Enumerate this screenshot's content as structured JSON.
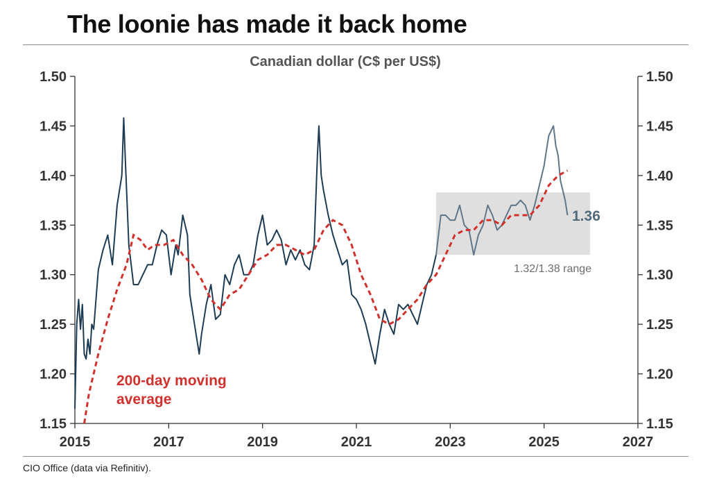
{
  "header": {
    "title": "The loonie has made it back home"
  },
  "footer": {
    "source": "CIO Office (data via Refinitiv)."
  },
  "chart_data": {
    "type": "line",
    "title": "Canadian dollar (C$ per US$)",
    "xlabel": "",
    "ylabel": "",
    "xlim": [
      2015,
      2027
    ],
    "ylim": [
      1.15,
      1.5
    ],
    "x_ticks": [
      "2015",
      "2017",
      "2019",
      "2021",
      "2023",
      "2025",
      "2027"
    ],
    "y_ticks": [
      "1.50",
      "1.45",
      "1.40",
      "1.35",
      "1.30",
      "1.25",
      "1.20",
      "1.15"
    ],
    "annotations": {
      "moving_average_line1": "200-day moving",
      "moving_average_line2": "average",
      "last_value": "1.36",
      "range": "1.32/1.38 range"
    },
    "range_band": {
      "from_x": 2022.7,
      "to_x": 2025.98,
      "low": 1.32,
      "high": 1.383
    },
    "series": [
      {
        "name": "Canadian dollar (C$ per US$)",
        "color": "#1d3b52",
        "highlight_color": "#5f7686",
        "x": [
          2015.0,
          2015.04,
          2015.08,
          2015.12,
          2015.16,
          2015.2,
          2015.24,
          2015.28,
          2015.32,
          2015.36,
          2015.4,
          2015.5,
          2015.6,
          2015.7,
          2015.8,
          2015.9,
          2016.0,
          2016.04,
          2016.08,
          2016.15,
          2016.25,
          2016.35,
          2016.45,
          2016.55,
          2016.65,
          2016.75,
          2016.85,
          2016.95,
          2017.05,
          2017.15,
          2017.2,
          2017.3,
          2017.4,
          2017.45,
          2017.55,
          2017.65,
          2017.7,
          2017.8,
          2017.9,
          2018.0,
          2018.1,
          2018.2,
          2018.3,
          2018.4,
          2018.5,
          2018.6,
          2018.7,
          2018.8,
          2018.9,
          2019.0,
          2019.1,
          2019.2,
          2019.3,
          2019.4,
          2019.5,
          2019.6,
          2019.7,
          2019.8,
          2019.9,
          2020.0,
          2020.1,
          2020.17,
          2020.2,
          2020.25,
          2020.3,
          2020.4,
          2020.5,
          2020.6,
          2020.7,
          2020.8,
          2020.9,
          2021.0,
          2021.1,
          2021.2,
          2021.3,
          2021.4,
          2021.5,
          2021.6,
          2021.7,
          2021.8,
          2021.9,
          2022.0,
          2022.1,
          2022.2,
          2022.3,
          2022.4,
          2022.5,
          2022.6,
          2022.7,
          2022.8,
          2022.9,
          2023.0,
          2023.1,
          2023.2,
          2023.3,
          2023.4,
          2023.5,
          2023.6,
          2023.7,
          2023.8,
          2023.9,
          2024.0,
          2024.1,
          2024.2,
          2024.3,
          2024.4,
          2024.5,
          2024.6,
          2024.7,
          2024.8,
          2024.9,
          2025.0,
          2025.05,
          2025.1,
          2025.15,
          2025.2,
          2025.25,
          2025.3,
          2025.35,
          2025.4,
          2025.45,
          2025.5
        ],
        "values": [
          1.165,
          1.25,
          1.275,
          1.245,
          1.27,
          1.22,
          1.215,
          1.235,
          1.22,
          1.25,
          1.245,
          1.305,
          1.325,
          1.34,
          1.31,
          1.37,
          1.4,
          1.458,
          1.41,
          1.33,
          1.29,
          1.29,
          1.3,
          1.31,
          1.31,
          1.33,
          1.345,
          1.34,
          1.3,
          1.33,
          1.32,
          1.36,
          1.34,
          1.28,
          1.25,
          1.22,
          1.24,
          1.27,
          1.29,
          1.255,
          1.26,
          1.3,
          1.29,
          1.31,
          1.32,
          1.3,
          1.3,
          1.31,
          1.34,
          1.36,
          1.33,
          1.335,
          1.345,
          1.335,
          1.31,
          1.325,
          1.315,
          1.325,
          1.31,
          1.305,
          1.33,
          1.42,
          1.45,
          1.4,
          1.385,
          1.36,
          1.34,
          1.325,
          1.31,
          1.315,
          1.28,
          1.275,
          1.265,
          1.25,
          1.23,
          1.21,
          1.24,
          1.265,
          1.25,
          1.24,
          1.27,
          1.265,
          1.27,
          1.26,
          1.25,
          1.27,
          1.29,
          1.3,
          1.32,
          1.36,
          1.36,
          1.355,
          1.355,
          1.37,
          1.35,
          1.345,
          1.32,
          1.34,
          1.35,
          1.37,
          1.36,
          1.345,
          1.35,
          1.36,
          1.37,
          1.37,
          1.375,
          1.37,
          1.355,
          1.37,
          1.39,
          1.41,
          1.425,
          1.44,
          1.445,
          1.45,
          1.43,
          1.42,
          1.395,
          1.385,
          1.375,
          1.36
        ]
      },
      {
        "name": "200-day moving average",
        "color": "#d0312d",
        "dashed": true,
        "x": [
          2015.2,
          2015.3,
          2015.5,
          2015.7,
          2015.9,
          2016.1,
          2016.25,
          2016.4,
          2016.55,
          2016.7,
          2016.9,
          2017.1,
          2017.3,
          2017.5,
          2017.7,
          2017.9,
          2018.1,
          2018.3,
          2018.5,
          2018.7,
          2018.9,
          2019.1,
          2019.3,
          2019.5,
          2019.7,
          2019.9,
          2020.1,
          2020.3,
          2020.5,
          2020.7,
          2020.9,
          2021.1,
          2021.3,
          2021.5,
          2021.7,
          2021.9,
          2022.1,
          2022.3,
          2022.5,
          2022.7,
          2022.9,
          2023.1,
          2023.3,
          2023.5,
          2023.7,
          2023.9,
          2024.1,
          2024.3,
          2024.5,
          2024.7,
          2024.9,
          2025.1,
          2025.3,
          2025.5
        ],
        "values": [
          1.15,
          1.18,
          1.22,
          1.255,
          1.285,
          1.31,
          1.34,
          1.335,
          1.325,
          1.33,
          1.33,
          1.335,
          1.32,
          1.31,
          1.295,
          1.275,
          1.265,
          1.28,
          1.285,
          1.3,
          1.315,
          1.32,
          1.33,
          1.33,
          1.325,
          1.32,
          1.325,
          1.345,
          1.355,
          1.35,
          1.33,
          1.3,
          1.28,
          1.255,
          1.25,
          1.255,
          1.265,
          1.275,
          1.29,
          1.3,
          1.32,
          1.34,
          1.345,
          1.345,
          1.355,
          1.355,
          1.35,
          1.36,
          1.36,
          1.36,
          1.37,
          1.39,
          1.4,
          1.405
        ]
      }
    ]
  }
}
